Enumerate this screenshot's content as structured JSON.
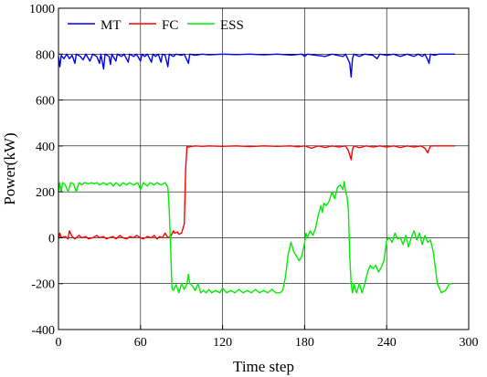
{
  "chart_data": {
    "type": "line",
    "title": "",
    "xlabel": "Time step",
    "ylabel": "Power(kW)",
    "xlim": [
      0,
      300
    ],
    "ylim": [
      -400,
      1000
    ],
    "x_ticks": [
      "0",
      "60",
      "120",
      "180",
      "240",
      "300"
    ],
    "y_ticks": [
      "-400",
      "-200",
      "0",
      "200",
      "400",
      "600",
      "800",
      "1000"
    ],
    "grid": true,
    "legend_position": "top-left",
    "series": [
      {
        "name": "MT",
        "color": "#0000ff",
        "points": [
          [
            0,
            790
          ],
          [
            1,
            745
          ],
          [
            2,
            795
          ],
          [
            4,
            780
          ],
          [
            6,
            800
          ],
          [
            8,
            780
          ],
          [
            10,
            795
          ],
          [
            12,
            760
          ],
          [
            13,
            800
          ],
          [
            16,
            790
          ],
          [
            18,
            775
          ],
          [
            20,
            800
          ],
          [
            23,
            770
          ],
          [
            25,
            800
          ],
          [
            28,
            790
          ],
          [
            30,
            760
          ],
          [
            31,
            800
          ],
          [
            33,
            735
          ],
          [
            34,
            800
          ],
          [
            37,
            790
          ],
          [
            38,
            755
          ],
          [
            39,
            800
          ],
          [
            42,
            770
          ],
          [
            43,
            800
          ],
          [
            46,
            790
          ],
          [
            48,
            800
          ],
          [
            51,
            765
          ],
          [
            52,
            800
          ],
          [
            55,
            790
          ],
          [
            57,
            800
          ],
          [
            60,
            770
          ],
          [
            61,
            800
          ],
          [
            63,
            790
          ],
          [
            65,
            800
          ],
          [
            68,
            765
          ],
          [
            69,
            800
          ],
          [
            71,
            790
          ],
          [
            73,
            800
          ],
          [
            75,
            765
          ],
          [
            76,
            800
          ],
          [
            78,
            795
          ],
          [
            80,
            745
          ],
          [
            81,
            800
          ],
          [
            84,
            790
          ],
          [
            86,
            800
          ],
          [
            90,
            795
          ],
          [
            92,
            800
          ],
          [
            95,
            760
          ],
          [
            96,
            800
          ],
          [
            100,
            795
          ],
          [
            105,
            800
          ],
          [
            110,
            797
          ],
          [
            120,
            800
          ],
          [
            130,
            798
          ],
          [
            140,
            800
          ],
          [
            150,
            797
          ],
          [
            160,
            800
          ],
          [
            170,
            796
          ],
          [
            178,
            800
          ],
          [
            180,
            790
          ],
          [
            182,
            800
          ],
          [
            195,
            790
          ],
          [
            200,
            800
          ],
          [
            208,
            790
          ],
          [
            210,
            800
          ],
          [
            213,
            760
          ],
          [
            214,
            700
          ],
          [
            215,
            780
          ],
          [
            216,
            800
          ],
          [
            220,
            790
          ],
          [
            224,
            800
          ],
          [
            230,
            795
          ],
          [
            233,
            780
          ],
          [
            235,
            800
          ],
          [
            240,
            795
          ],
          [
            245,
            800
          ],
          [
            250,
            790
          ],
          [
            255,
            800
          ],
          [
            260,
            790
          ],
          [
            263,
            800
          ],
          [
            266,
            790
          ],
          [
            268,
            800
          ],
          [
            270,
            775
          ],
          [
            271,
            760
          ],
          [
            272,
            800
          ],
          [
            275,
            795
          ],
          [
            278,
            800
          ],
          [
            290,
            800
          ]
        ]
      },
      {
        "name": "FC",
        "color": "#ff0000",
        "points": [
          [
            0,
            -5
          ],
          [
            1,
            20
          ],
          [
            2,
            0
          ],
          [
            5,
            5
          ],
          [
            7,
            -5
          ],
          [
            8,
            30
          ],
          [
            10,
            5
          ],
          [
            12,
            -5
          ],
          [
            15,
            10
          ],
          [
            17,
            0
          ],
          [
            20,
            5
          ],
          [
            22,
            -5
          ],
          [
            25,
            0
          ],
          [
            28,
            10
          ],
          [
            30,
            0
          ],
          [
            33,
            5
          ],
          [
            35,
            -5
          ],
          [
            37,
            0
          ],
          [
            40,
            5
          ],
          [
            42,
            -5
          ],
          [
            45,
            10
          ],
          [
            47,
            0
          ],
          [
            50,
            -5
          ],
          [
            52,
            5
          ],
          [
            55,
            0
          ],
          [
            57,
            10
          ],
          [
            60,
            0
          ],
          [
            62,
            -5
          ],
          [
            65,
            5
          ],
          [
            68,
            0
          ],
          [
            70,
            10
          ],
          [
            72,
            -5
          ],
          [
            74,
            5
          ],
          [
            76,
            0
          ],
          [
            78,
            20
          ],
          [
            80,
            0
          ],
          [
            82,
            5
          ],
          [
            84,
            30
          ],
          [
            85,
            20
          ],
          [
            87,
            25
          ],
          [
            88,
            15
          ],
          [
            90,
            20
          ],
          [
            92,
            60
          ],
          [
            93,
            300
          ],
          [
            94,
            400
          ],
          [
            95,
            395
          ],
          [
            100,
            400
          ],
          [
            105,
            398
          ],
          [
            110,
            400
          ],
          [
            120,
            398
          ],
          [
            130,
            400
          ],
          [
            140,
            397
          ],
          [
            150,
            400
          ],
          [
            160,
            398
          ],
          [
            170,
            400
          ],
          [
            175,
            396
          ],
          [
            180,
            400
          ],
          [
            185,
            390
          ],
          [
            190,
            400
          ],
          [
            195,
            393
          ],
          [
            200,
            400
          ],
          [
            205,
            395
          ],
          [
            210,
            400
          ],
          [
            212,
            380
          ],
          [
            214,
            340
          ],
          [
            215,
            385
          ],
          [
            216,
            400
          ],
          [
            220,
            392
          ],
          [
            225,
            400
          ],
          [
            230,
            395
          ],
          [
            235,
            400
          ],
          [
            240,
            395
          ],
          [
            245,
            400
          ],
          [
            250,
            393
          ],
          [
            255,
            400
          ],
          [
            260,
            395
          ],
          [
            265,
            400
          ],
          [
            268,
            390
          ],
          [
            270,
            370
          ],
          [
            272,
            400
          ],
          [
            280,
            400
          ],
          [
            290,
            400
          ]
        ]
      },
      {
        "name": "ESS",
        "color": "#00ee00",
        "points": [
          [
            0,
            200
          ],
          [
            1,
            240
          ],
          [
            2,
            200
          ],
          [
            3,
            240
          ],
          [
            5,
            230
          ],
          [
            7,
            200
          ],
          [
            9,
            240
          ],
          [
            11,
            235
          ],
          [
            13,
            200
          ],
          [
            15,
            240
          ],
          [
            17,
            230
          ],
          [
            19,
            240
          ],
          [
            22,
            235
          ],
          [
            24,
            240
          ],
          [
            26,
            235
          ],
          [
            28,
            240
          ],
          [
            30,
            230
          ],
          [
            33,
            240
          ],
          [
            35,
            230
          ],
          [
            38,
            240
          ],
          [
            40,
            225
          ],
          [
            42,
            240
          ],
          [
            45,
            225
          ],
          [
            47,
            240
          ],
          [
            50,
            230
          ],
          [
            52,
            240
          ],
          [
            55,
            230
          ],
          [
            58,
            240
          ],
          [
            60,
            210
          ],
          [
            62,
            240
          ],
          [
            65,
            225
          ],
          [
            67,
            240
          ],
          [
            70,
            230
          ],
          [
            72,
            240
          ],
          [
            75,
            230
          ],
          [
            78,
            240
          ],
          [
            80,
            220
          ],
          [
            81,
            120
          ],
          [
            82,
            -40
          ],
          [
            83,
            -220
          ],
          [
            84,
            -230
          ],
          [
            86,
            -205
          ],
          [
            88,
            -240
          ],
          [
            90,
            -200
          ],
          [
            92,
            -225
          ],
          [
            94,
            -200
          ],
          [
            95,
            -160
          ],
          [
            96,
            -200
          ],
          [
            98,
            -210
          ],
          [
            100,
            -230
          ],
          [
            102,
            -200
          ],
          [
            104,
            -240
          ],
          [
            106,
            -230
          ],
          [
            108,
            -240
          ],
          [
            110,
            -225
          ],
          [
            112,
            -240
          ],
          [
            115,
            -230
          ],
          [
            118,
            -240
          ],
          [
            120,
            -220
          ],
          [
            123,
            -240
          ],
          [
            126,
            -230
          ],
          [
            129,
            -240
          ],
          [
            132,
            -225
          ],
          [
            135,
            -240
          ],
          [
            138,
            -230
          ],
          [
            141,
            -240
          ],
          [
            144,
            -225
          ],
          [
            147,
            -240
          ],
          [
            150,
            -230
          ],
          [
            153,
            -240
          ],
          [
            156,
            -225
          ],
          [
            159,
            -240
          ],
          [
            162,
            -240
          ],
          [
            164,
            -230
          ],
          [
            166,
            -170
          ],
          [
            168,
            -70
          ],
          [
            170,
            -20
          ],
          [
            172,
            -60
          ],
          [
            174,
            -80
          ],
          [
            176,
            -100
          ],
          [
            178,
            -80
          ],
          [
            180,
            -20
          ],
          [
            181,
            20
          ],
          [
            182,
            0
          ],
          [
            184,
            30
          ],
          [
            186,
            10
          ],
          [
            188,
            40
          ],
          [
            190,
            100
          ],
          [
            192,
            140
          ],
          [
            193,
            110
          ],
          [
            194,
            150
          ],
          [
            196,
            140
          ],
          [
            198,
            160
          ],
          [
            200,
            200
          ],
          [
            202,
            170
          ],
          [
            204,
            220
          ],
          [
            206,
            230
          ],
          [
            208,
            210
          ],
          [
            209,
            245
          ],
          [
            210,
            200
          ],
          [
            211,
            180
          ],
          [
            212,
            120
          ],
          [
            213,
            -80
          ],
          [
            214,
            -200
          ],
          [
            215,
            -240
          ],
          [
            216,
            -200
          ],
          [
            218,
            -240
          ],
          [
            220,
            -200
          ],
          [
            222,
            -240
          ],
          [
            224,
            -200
          ],
          [
            226,
            -150
          ],
          [
            228,
            -120
          ],
          [
            230,
            -135
          ],
          [
            232,
            -120
          ],
          [
            234,
            -150
          ],
          [
            236,
            -130
          ],
          [
            238,
            -100
          ],
          [
            240,
            -10
          ],
          [
            242,
            0
          ],
          [
            244,
            -20
          ],
          [
            246,
            20
          ],
          [
            248,
            -5
          ],
          [
            250,
            0
          ],
          [
            252,
            -30
          ],
          [
            254,
            10
          ],
          [
            256,
            -40
          ],
          [
            258,
            0
          ],
          [
            260,
            30
          ],
          [
            262,
            -10
          ],
          [
            264,
            20
          ],
          [
            266,
            -30
          ],
          [
            268,
            10
          ],
          [
            270,
            -20
          ],
          [
            272,
            -10
          ],
          [
            274,
            -60
          ],
          [
            276,
            -150
          ],
          [
            277,
            -200
          ],
          [
            280,
            -240
          ],
          [
            283,
            -230
          ],
          [
            286,
            -200
          ],
          [
            288,
            -200
          ]
        ]
      }
    ]
  }
}
